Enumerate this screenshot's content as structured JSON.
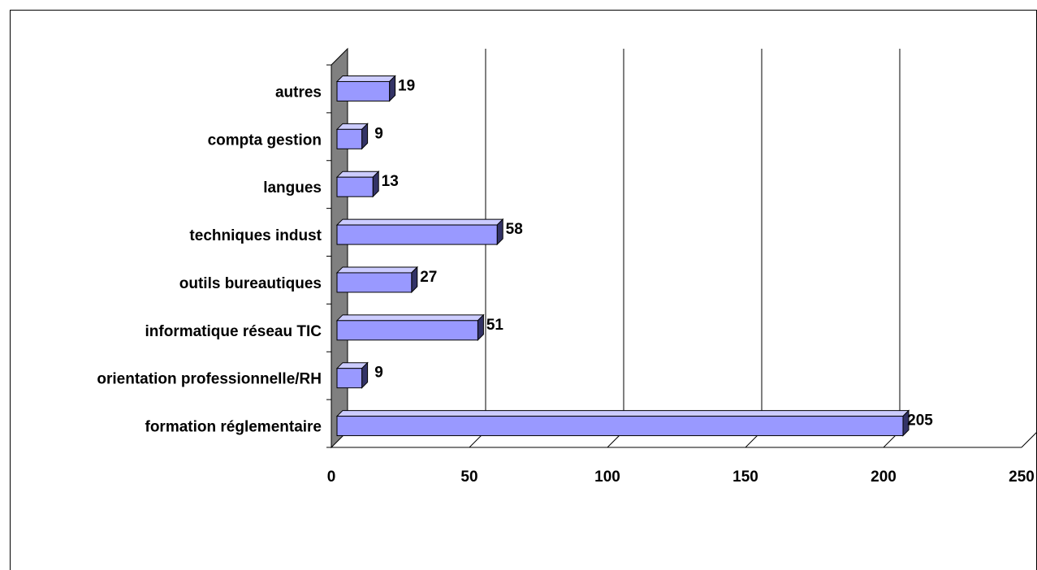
{
  "chart_data": {
    "type": "bar",
    "orientation": "horizontal",
    "three_d": true,
    "categories": [
      "formation réglementaire",
      "orientation professionnelle/RH",
      "informatique réseau TIC",
      "outils bureautiques",
      "techniques indust",
      "langues",
      "compta gestion",
      "autres"
    ],
    "values": [
      205,
      9,
      51,
      27,
      58,
      13,
      9,
      19
    ],
    "xlim": [
      0,
      250
    ],
    "x_ticks": [
      "0",
      "50",
      "100",
      "150",
      "200",
      "250"
    ],
    "grid": true,
    "legend": "none",
    "title": "",
    "xlabel": "",
    "ylabel": "",
    "colors": {
      "bar_front": "#9999ff",
      "bar_top": "#ccccff",
      "bar_side": "#333366",
      "wall": "#808080",
      "gridline": "#000000",
      "background": "#ffffff"
    }
  }
}
